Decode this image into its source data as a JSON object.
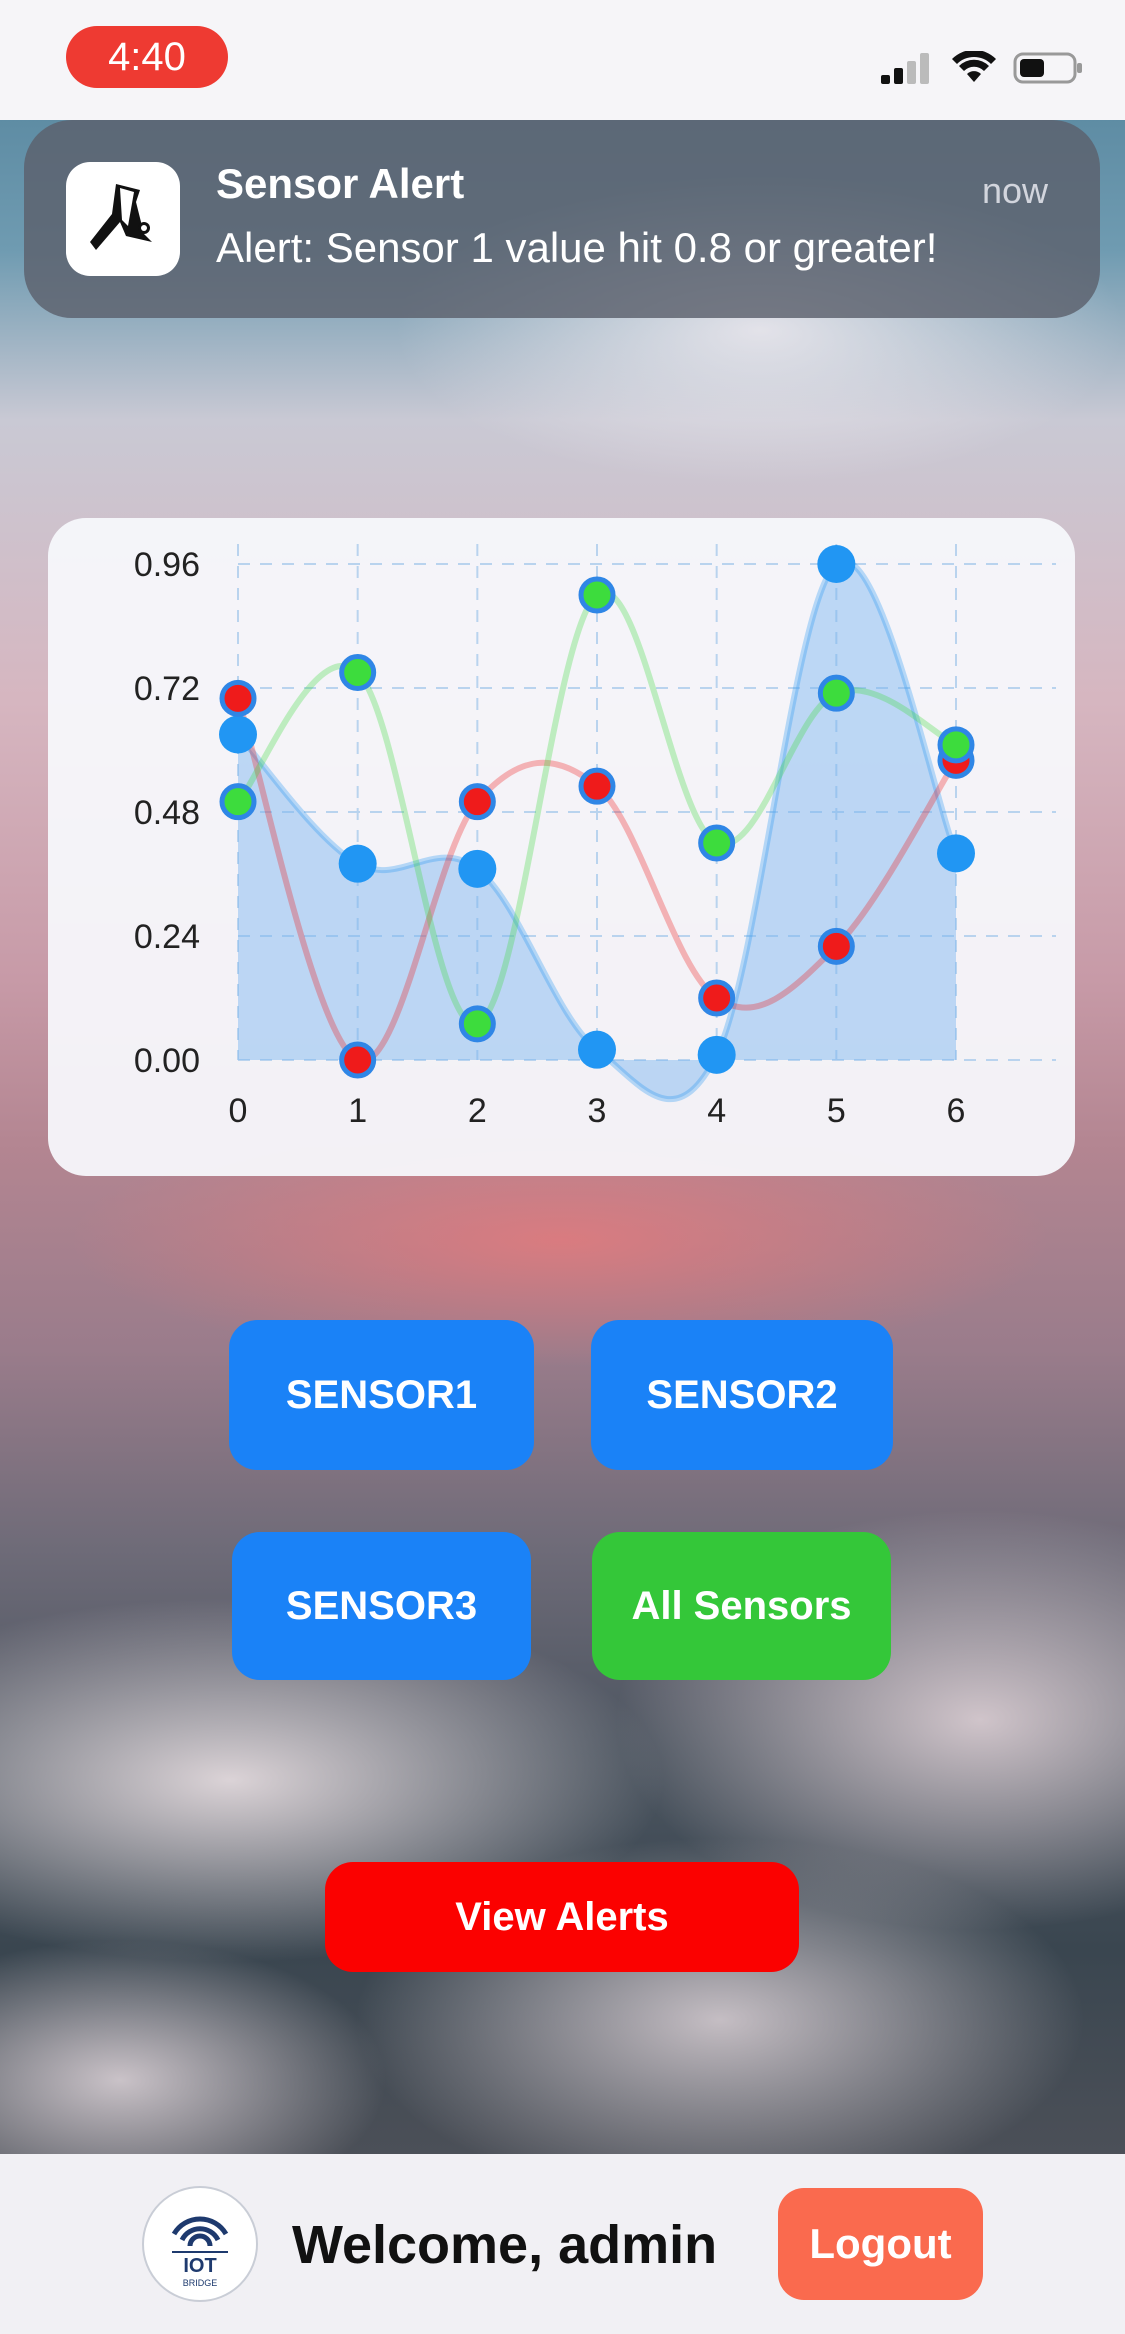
{
  "status_bar": {
    "time": "4:40"
  },
  "notification": {
    "title": "Sensor Alert",
    "time": "now",
    "body": "Alert: Sensor 1 value hit 0.8 or greater!",
    "icon": "app-icon"
  },
  "chart_data": {
    "type": "area",
    "x": [
      0,
      1,
      2,
      3,
      4,
      5,
      6
    ],
    "y_ticks": [
      "0.96",
      "0.72",
      "0.48",
      "0.24",
      "0.00"
    ],
    "x_ticks": [
      "0",
      "1",
      "2",
      "3",
      "4",
      "5",
      "6"
    ],
    "ylim": [
      0,
      0.96
    ],
    "xlim": [
      0,
      6
    ],
    "grid": true,
    "series": [
      {
        "color": "#2196f3",
        "fill": true,
        "values": [
          0.63,
          0.38,
          0.37,
          0.02,
          0.01,
          0.96,
          0.4
        ]
      },
      {
        "color": "#ef1b1b",
        "fill": false,
        "values": [
          0.7,
          0.0,
          0.5,
          0.53,
          0.12,
          0.22,
          0.58
        ]
      },
      {
        "color": "#3ddc3d",
        "fill": false,
        "values": [
          0.5,
          0.75,
          0.07,
          0.9,
          0.42,
          0.71,
          0.61
        ]
      }
    ]
  },
  "buttons": {
    "sensor1": "SENSOR1",
    "sensor2": "SENSOR2",
    "sensor3": "SENSOR3",
    "all_sensors": "All Sensors",
    "view_alerts": "View Alerts"
  },
  "footer": {
    "logo_text": "IOT",
    "logo_subtext": "BRIDGE",
    "welcome": "Welcome, admin",
    "logout": "Logout"
  },
  "colors": {
    "blue_button": "#1a82f7",
    "green_button": "#34c739",
    "red_button": "#fb0100",
    "logout_button": "#fa6a4e",
    "time_pill": "#ee3a32"
  }
}
